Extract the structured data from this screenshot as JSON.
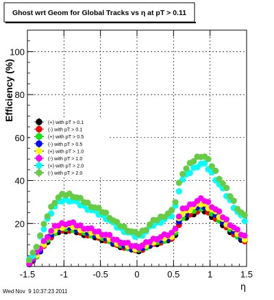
{
  "chart_data": {
    "type": "scatter",
    "title": "Ghost wrt Geom for Global Tracks vs   η at pT > 0.11",
    "xlabel": "η",
    "ylabel": "Efficiency (%)",
    "xlim": [
      -1.5,
      1.5
    ],
    "ylim": [
      0,
      110
    ],
    "x_ticks": [
      -1.5,
      -1,
      -0.5,
      0,
      0.5,
      1,
      1.5
    ],
    "x_tick_labels": [
      "-1.5",
      "-1",
      "-0.5",
      "0",
      "0.5",
      "1",
      "1.5"
    ],
    "y_ticks": [
      20,
      40,
      60,
      80,
      100
    ],
    "y_tick_labels": [
      "20",
      "40",
      "60",
      "80",
      "100"
    ],
    "grid": true,
    "legend_position": "left",
    "series": [
      {
        "name": "(+) with pT > 0.1",
        "color": "#000000",
        "y_scale": 0.94,
        "y_offset": 0
      },
      {
        "name": "(-) with pT > 0.1",
        "color": "#ff0000",
        "y_scale": 0.96,
        "y_offset": 0
      },
      {
        "name": "(+) with pT > 0.5",
        "color": "#00ee00",
        "y_scale": 0.99,
        "y_offset": 0
      },
      {
        "name": "(-) with pT > 0.5",
        "color": "#0000ff",
        "y_scale": 1.02,
        "y_offset": 0
      },
      {
        "name": "(+) with pT > 1.0",
        "color": "#ffff00",
        "y_scale": 1.05,
        "y_offset": 0
      },
      {
        "name": "(-) with pT > 1.0",
        "color": "#ff00ff",
        "y_scale": 1.12,
        "y_offset": 0
      },
      {
        "name": "(+) with pT > 2.0",
        "color": "#00ffff",
        "y_scale": 1.72,
        "y_offset": 0
      },
      {
        "name": "(-) with pT > 2.0",
        "color": "#66cc44",
        "y_scale": 1.86,
        "y_offset": 0
      }
    ],
    "base_curve": {
      "x": [
        -1.5,
        -1.4,
        -1.3,
        -1.2,
        -1.1,
        -1.0,
        -0.9,
        -0.8,
        -0.7,
        -0.6,
        -0.5,
        -0.4,
        -0.3,
        -0.2,
        -0.1,
        0.0,
        0.1,
        0.2,
        0.3,
        0.4,
        0.5,
        0.6,
        0.7,
        0.8,
        0.9,
        1.0,
        1.1,
        1.2,
        1.3,
        1.4,
        1.5
      ],
      "y": [
        1,
        4,
        9,
        14,
        17,
        18,
        18,
        17,
        16,
        15,
        14,
        13,
        11,
        10,
        9,
        8,
        9,
        11,
        12,
        13,
        14,
        23,
        25,
        27,
        28,
        26,
        23,
        20,
        17,
        14,
        12
      ]
    },
    "footer": "Wed Nov  9 10:37:23 2011"
  },
  "colors": {
    "frame": "#000000",
    "grid": "#000000"
  }
}
